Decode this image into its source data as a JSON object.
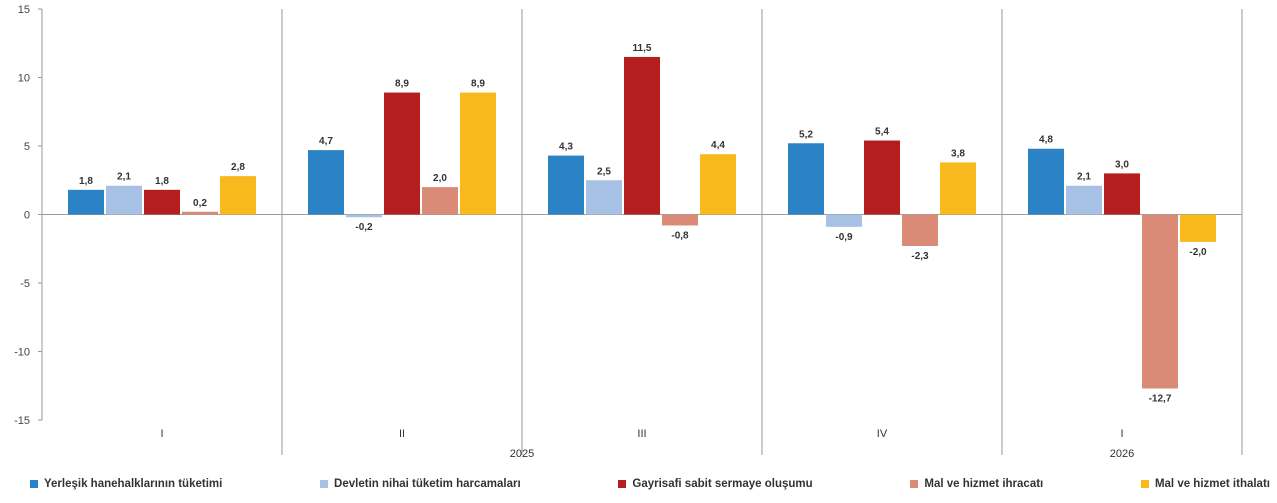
{
  "chart_data": {
    "type": "bar",
    "ylim": [
      -15,
      15
    ],
    "yticks": [
      "15",
      "10",
      "5",
      "0",
      "-5",
      "-10",
      "-15"
    ],
    "yticks_values": [
      15,
      10,
      5,
      0,
      -5,
      -10,
      -15
    ],
    "categories": [
      "I",
      "II",
      "III",
      "IV",
      "I"
    ],
    "years": [
      {
        "label": "2025",
        "start": 0,
        "end": 3
      },
      {
        "label": "2026",
        "start": 4,
        "end": 4
      }
    ],
    "series": [
      {
        "name": "Yerleşik hanehalklarının tüketimi",
        "color": "#2b83c6",
        "values": [
          1.8,
          4.7,
          4.3,
          5.2,
          4.8
        ],
        "labels": [
          "1,8",
          "4,7",
          "4,3",
          "5,2",
          "4,8"
        ]
      },
      {
        "name": "Devletin nihai tüketim harcamaları",
        "color": "#a6c1e3",
        "values": [
          2.1,
          -0.2,
          2.5,
          -0.9,
          2.1
        ],
        "labels": [
          "2,1",
          "-0,2",
          "2,5",
          "-0,9",
          "2,1"
        ]
      },
      {
        "name": "Gayrisafi sabit sermaye oluşumu",
        "color": "#b41e1e",
        "values": [
          1.8,
          8.9,
          11.5,
          5.4,
          3.0
        ],
        "labels": [
          "1,8",
          "8,9",
          "11,5",
          "5,4",
          "3,0"
        ]
      },
      {
        "name": "Mal ve hizmet ihracatı",
        "color": "#d98b77",
        "values": [
          0.2,
          2.0,
          -0.8,
          -2.3,
          -12.7
        ],
        "labels": [
          "0,2",
          "2,0",
          "-0,8",
          "-2,3",
          "-12,7"
        ]
      },
      {
        "name": "Mal ve hizmet ithalatı",
        "color": "#f8b91c",
        "values": [
          2.8,
          8.9,
          4.4,
          3.8,
          -2.0
        ],
        "labels": [
          "2,8",
          "8,9",
          "4,4",
          "3,8",
          "-2,0"
        ]
      }
    ],
    "grid": false,
    "legend_position": "bottom"
  }
}
